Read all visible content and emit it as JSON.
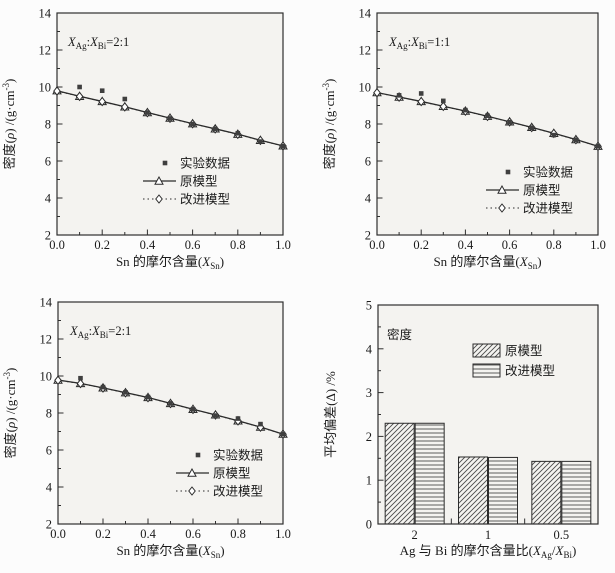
{
  "page": {
    "background": "#fcfcfc"
  },
  "colors": {
    "plot_bg": "#f4f3f0",
    "frame": "#2f2f2f",
    "line": "#2b2b2b",
    "text": "#1a1a1a",
    "experimental": "#3f3f3f",
    "marker_fill": "#ffffff",
    "hatch": "#4a4a4a"
  },
  "chart_data": [
    {
      "id": "top-left",
      "type": "line",
      "annotation": "X_{Ag}:X_{Bi}=2:1",
      "xlabel": "Sn 的摩尔含量(X_{Sn})",
      "ylabel": "密度(ρ) /(g·cm^{-3})",
      "xlim": [
        0,
        1
      ],
      "ylim": [
        2,
        14
      ],
      "xticks": [
        0.0,
        0.2,
        0.4,
        0.6,
        0.8,
        1.0
      ],
      "yticks": [
        2,
        4,
        6,
        8,
        10,
        12,
        14
      ],
      "grid": false,
      "legend_position": "lower-right",
      "x": [
        0,
        0.1,
        0.2,
        0.3,
        0.4,
        0.5,
        0.6,
        0.7,
        0.8,
        0.9,
        1.0
      ],
      "series": [
        {
          "name": "实验数据",
          "marker": "filled-square",
          "line": "none",
          "x": [
            0.1,
            0.2,
            0.3,
            0.4,
            0.5,
            0.6,
            0.7,
            0.8,
            0.9,
            1.0
          ],
          "values": [
            10.0,
            9.8,
            9.35,
            8.62,
            8.3,
            8.0,
            7.74,
            7.5,
            7.05,
            6.8
          ]
        },
        {
          "name": "原模型",
          "marker": "open-triangle",
          "line": "solid",
          "values": [
            9.8,
            9.5,
            9.22,
            8.93,
            8.62,
            8.32,
            8.02,
            7.74,
            7.45,
            7.12,
            6.82
          ]
        },
        {
          "name": "改进模型",
          "marker": "open-diamond",
          "line": "dotted",
          "values": [
            9.78,
            9.49,
            9.21,
            8.92,
            8.61,
            8.31,
            8.01,
            7.73,
            7.44,
            7.11,
            6.81
          ]
        }
      ]
    },
    {
      "id": "top-right",
      "type": "line",
      "annotation": "X_{Ag}:X_{Bi}=1:1",
      "xlabel": "Sn 的摩尔含量(X_{Sn})",
      "ylabel": "密度(ρ) /(g·cm^{-3})",
      "xlim": [
        0,
        1
      ],
      "ylim": [
        2,
        14
      ],
      "xticks": [
        0.0,
        0.2,
        0.4,
        0.6,
        0.8,
        1.0
      ],
      "yticks": [
        2,
        4,
        6,
        8,
        10,
        12,
        14
      ],
      "grid": false,
      "legend_position": "lower-right",
      "x": [
        0,
        0.1,
        0.2,
        0.3,
        0.4,
        0.5,
        0.6,
        0.7,
        0.8,
        0.9,
        1.0
      ],
      "series": [
        {
          "name": "实验数据",
          "marker": "filled-square",
          "line": "none",
          "x": [
            0.1,
            0.2,
            0.3,
            0.4,
            0.5,
            0.6,
            0.7,
            0.8,
            0.9,
            1.0
          ],
          "values": [
            9.55,
            9.65,
            9.25,
            8.75,
            8.45,
            8.1,
            7.8,
            7.4,
            7.15,
            6.8
          ]
        },
        {
          "name": "原模型",
          "marker": "open-triangle",
          "line": "solid",
          "values": [
            9.7,
            9.46,
            9.22,
            8.96,
            8.7,
            8.42,
            8.12,
            7.82,
            7.5,
            7.16,
            6.8
          ]
        },
        {
          "name": "改进模型",
          "marker": "open-diamond",
          "line": "dotted",
          "values": [
            9.69,
            9.45,
            9.21,
            8.95,
            8.69,
            8.41,
            8.11,
            7.81,
            7.49,
            7.15,
            6.79
          ]
        }
      ]
    },
    {
      "id": "bottom-left",
      "type": "line",
      "annotation": "X_{Ag}:X_{Bi}=2:1",
      "xlabel": "Sn 的摩尔含量(X_{Sn})",
      "ylabel": "密度(ρ) /(g·cm^{-3})",
      "xlim": [
        0,
        1
      ],
      "ylim": [
        2,
        14
      ],
      "xticks": [
        0.0,
        0.2,
        0.4,
        0.6,
        0.8,
        1.0
      ],
      "yticks": [
        2,
        4,
        6,
        8,
        10,
        12,
        14
      ],
      "grid": false,
      "legend_position": "lower-right",
      "x": [
        0,
        0.1,
        0.2,
        0.3,
        0.4,
        0.5,
        0.6,
        0.7,
        0.8,
        0.9,
        1.0
      ],
      "series": [
        {
          "name": "实验数据",
          "marker": "filled-square",
          "line": "none",
          "x": [
            0.1,
            0.2,
            0.3,
            0.4,
            0.5,
            0.6,
            0.7,
            0.8,
            0.9,
            1.0
          ],
          "values": [
            9.88,
            9.4,
            9.12,
            8.86,
            8.52,
            8.2,
            7.86,
            7.7,
            7.4,
            6.86
          ]
        },
        {
          "name": "原模型",
          "marker": "open-triangle",
          "line": "solid",
          "values": [
            9.78,
            9.6,
            9.36,
            9.1,
            8.84,
            8.52,
            8.2,
            7.9,
            7.58,
            7.24,
            6.86
          ]
        },
        {
          "name": "改进模型",
          "marker": "open-diamond",
          "line": "dotted",
          "values": [
            9.77,
            9.59,
            9.35,
            9.09,
            8.83,
            8.51,
            8.19,
            7.89,
            7.57,
            7.23,
            6.85
          ]
        }
      ]
    },
    {
      "id": "bottom-right",
      "type": "bar",
      "annotation": "密度",
      "xlabel": "Ag 与 Bi 的摩尔含量比(X_{Ag}/X_{Bi})",
      "ylabel": "平均偏差(Δ) /%",
      "ylim": [
        0,
        5
      ],
      "yticks": [
        0,
        1,
        2,
        3,
        4,
        5
      ],
      "grid": false,
      "legend_position": "upper-right",
      "categories": [
        "2",
        "1",
        "0.5"
      ],
      "series": [
        {
          "name": "原模型",
          "hatch": "diagonal",
          "values": [
            2.3,
            1.53,
            1.43
          ]
        },
        {
          "name": "改进模型",
          "hatch": "horizontal",
          "values": [
            2.3,
            1.52,
            1.43
          ]
        }
      ]
    }
  ]
}
